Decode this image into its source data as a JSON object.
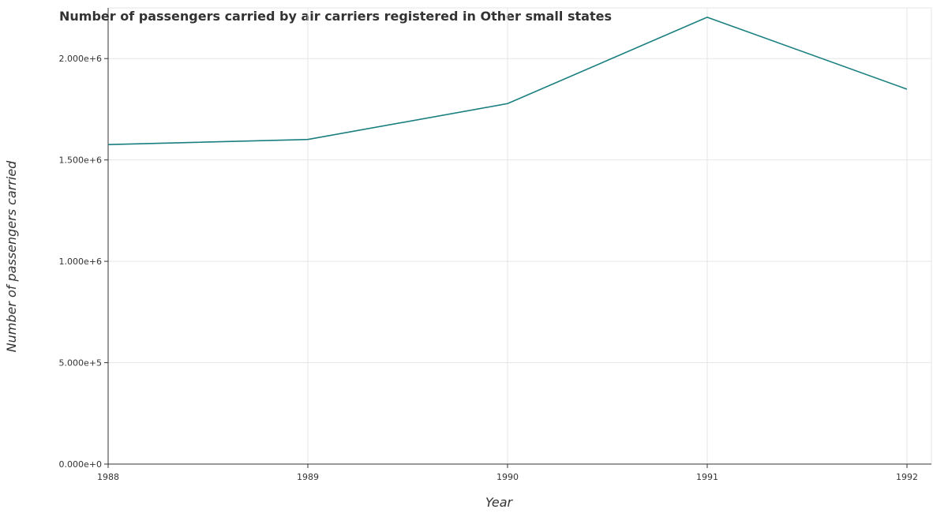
{
  "chart_data": {
    "type": "line",
    "title": "Number of passengers carried by air carriers registered in Other small states",
    "xlabel": "Year",
    "ylabel": "Number of passengers carried",
    "categories": [
      "1988",
      "1989",
      "1990",
      "1991",
      "1992"
    ],
    "series": [
      {
        "name": "",
        "values": [
          1576000,
          1601000,
          1778000,
          2204000,
          1849000
        ]
      }
    ],
    "ylim": [
      0,
      2250000
    ],
    "yticks": [
      0,
      500000,
      1000000,
      1500000,
      2000000
    ],
    "ytick_labels": [
      "0.000e+0",
      "5.000e+5",
      "1.000e+6",
      "1.500e+6",
      "2.000e+6"
    ],
    "grid": true,
    "line_color": "#1a7f80"
  }
}
